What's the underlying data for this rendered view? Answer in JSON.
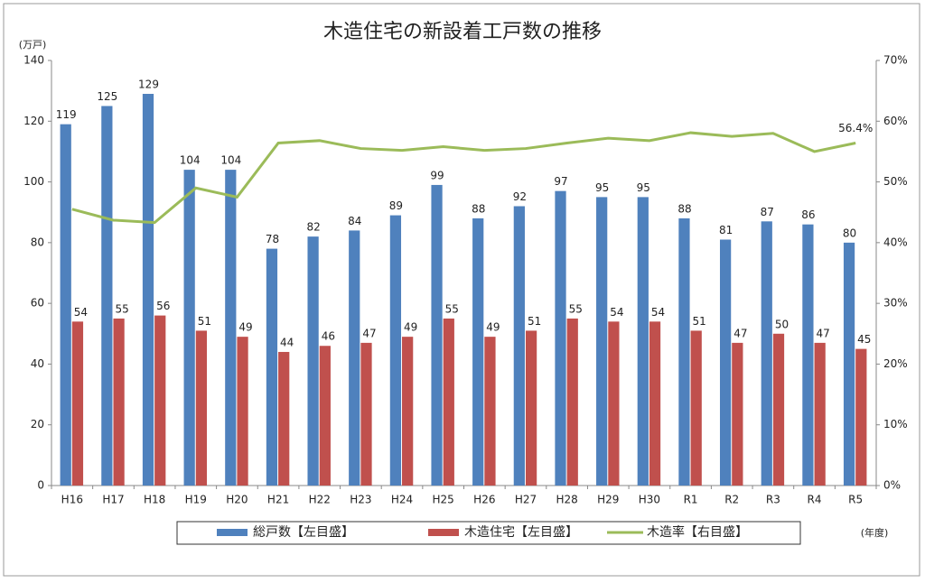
{
  "chart_data": {
    "type": "bar_line",
    "title": "木造住宅の新設着工戸数の推移",
    "y_unit": "(万戸)",
    "x_unit": "(年度)",
    "categories": [
      "H16",
      "H17",
      "H18",
      "H19",
      "H20",
      "H21",
      "H22",
      "H23",
      "H24",
      "H25",
      "H26",
      "H27",
      "H28",
      "H29",
      "H30",
      "R1",
      "R2",
      "R3",
      "R4",
      "R5"
    ],
    "series": [
      {
        "name": "総戸数【左目盛】",
        "type": "bar",
        "color": "#4f81bd",
        "values": [
          119,
          125,
          129,
          104,
          104,
          78,
          82,
          84,
          89,
          99,
          88,
          92,
          97,
          95,
          95,
          88,
          81,
          87,
          86,
          80
        ]
      },
      {
        "name": "木造住宅【左目盛】",
        "type": "bar",
        "color": "#c0504d",
        "values": [
          54,
          55,
          56,
          51,
          49,
          44,
          46,
          47,
          49,
          55,
          49,
          51,
          55,
          54,
          54,
          51,
          47,
          50,
          47,
          45
        ]
      },
      {
        "name": "木造率【右目盛】",
        "type": "line",
        "axis": "y2",
        "color": "#9bbb59",
        "values": [
          45.5,
          43.7,
          43.3,
          49.0,
          47.5,
          56.4,
          56.8,
          55.5,
          55.2,
          55.8,
          55.2,
          55.5,
          56.4,
          57.2,
          56.8,
          58.1,
          57.5,
          58.0,
          55.0,
          56.4
        ],
        "value_labels": [
          null,
          null,
          null,
          null,
          null,
          null,
          null,
          null,
          null,
          null,
          null,
          null,
          null,
          null,
          null,
          null,
          null,
          null,
          null,
          "56.4%"
        ]
      }
    ],
    "ylim": [
      0,
      140
    ],
    "yticks": [
      0,
      20,
      40,
      60,
      80,
      100,
      120,
      140
    ],
    "y2lim": [
      0,
      70
    ],
    "y2ticks": [
      {
        "value": 0,
        "label": "0%"
      },
      {
        "value": 10,
        "label": "10%"
      },
      {
        "value": 20,
        "label": "20%"
      },
      {
        "value": 30,
        "label": "30%"
      },
      {
        "value": 40,
        "label": "40%"
      },
      {
        "value": 50,
        "label": "50%"
      },
      {
        "value": 60,
        "label": "60%"
      },
      {
        "value": 70,
        "label": "70%"
      }
    ],
    "grid": false
  }
}
